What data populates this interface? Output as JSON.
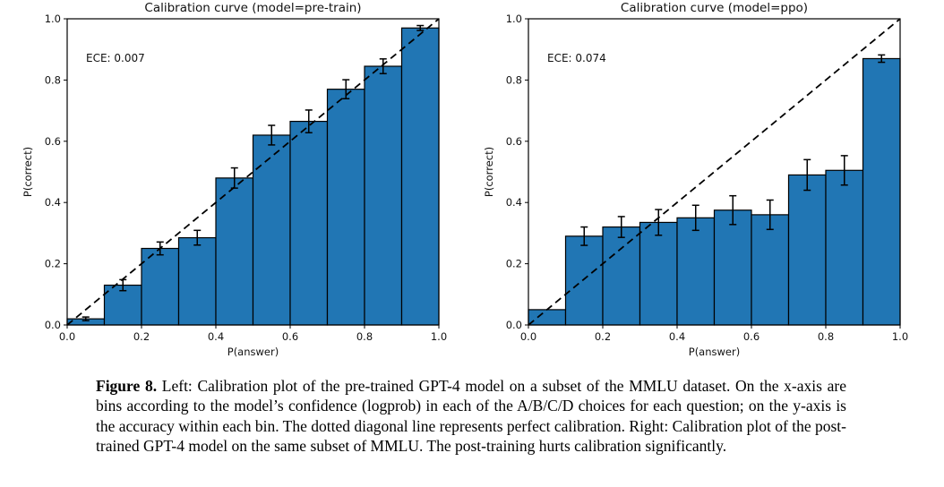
{
  "figure": {
    "caption_label": "Figure 8.",
    "caption_text": "Left: Calibration plot of the pre-trained GPT-4 model on a subset of the MMLU dataset. On the x-axis are bins according to the model’s confidence (logprob) in each of the A/B/C/D choices for each question; on the y-axis is the accuracy within each bin. The dotted diagonal line represents perfect calibration. Right: Calibration plot of the post-trained GPT-4 model on the same subset of MMLU. The post-training hurts calibration significantly."
  },
  "chart_data": [
    {
      "type": "bar",
      "title": "Calibration curve (model=pre-train)",
      "annotation": "ECE: 0.007",
      "xlabel": "P(answer)",
      "ylabel": "P(correct)",
      "xlim": [
        0,
        1
      ],
      "ylim": [
        0,
        1
      ],
      "xticks": [
        "0.0",
        "0.2",
        "0.4",
        "0.6",
        "0.8",
        "1.0"
      ],
      "yticks": [
        "0.0",
        "0.2",
        "0.4",
        "0.6",
        "0.8",
        "1.0"
      ],
      "grid": false,
      "legend": null,
      "bin_edges": [
        0.0,
        0.1,
        0.2,
        0.3,
        0.4,
        0.5,
        0.6,
        0.7,
        0.8,
        0.9,
        1.0
      ],
      "values": [
        0.02,
        0.13,
        0.25,
        0.285,
        0.48,
        0.62,
        0.665,
        0.77,
        0.845,
        0.97
      ],
      "errors": [
        0.006,
        0.018,
        0.021,
        0.024,
        0.033,
        0.032,
        0.037,
        0.031,
        0.024,
        0.008
      ],
      "diagonal": {
        "from": [
          0,
          0
        ],
        "to": [
          1,
          1
        ],
        "style": "dashed",
        "meaning": "perfect calibration"
      },
      "bar_color": "#2176b4",
      "bar_edge_color": "#000000"
    },
    {
      "type": "bar",
      "title": "Calibration curve (model=ppo)",
      "annotation": "ECE: 0.074",
      "xlabel": "P(answer)",
      "ylabel": "P(correct)",
      "xlim": [
        0,
        1
      ],
      "ylim": [
        0,
        1
      ],
      "xticks": [
        "0.0",
        "0.2",
        "0.4",
        "0.6",
        "0.8",
        "1.0"
      ],
      "yticks": [
        "0.0",
        "0.2",
        "0.4",
        "0.6",
        "0.8",
        "1.0"
      ],
      "grid": false,
      "legend": null,
      "bin_edges": [
        0.0,
        0.1,
        0.2,
        0.3,
        0.4,
        0.5,
        0.6,
        0.7,
        0.8,
        0.9,
        1.0
      ],
      "values": [
        0.05,
        0.29,
        0.32,
        0.335,
        0.35,
        0.375,
        0.36,
        0.49,
        0.505,
        0.87
      ],
      "errors": [
        0,
        0.03,
        0.034,
        0.042,
        0.041,
        0.047,
        0.048,
        0.05,
        0.048,
        0.012
      ],
      "diagonal": {
        "from": [
          0,
          0
        ],
        "to": [
          1,
          1
        ],
        "style": "dashed",
        "meaning": "perfect calibration"
      },
      "bar_color": "#2176b4",
      "bar_edge_color": "#000000"
    }
  ]
}
